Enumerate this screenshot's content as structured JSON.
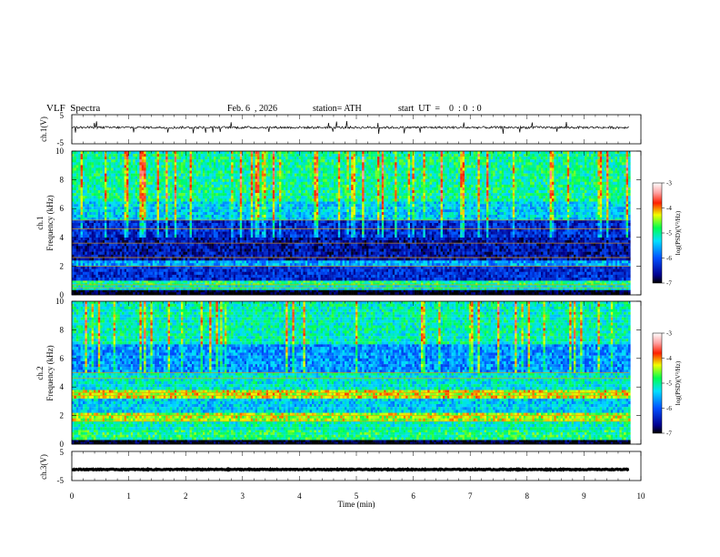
{
  "header": {
    "title": "VLF  Spectra",
    "date": "Feb. 6  , 2026",
    "station": "station= ATH",
    "start_ut": "start  UT  =    0  : 0  : 0"
  },
  "chart_data": [
    {
      "type": "line",
      "panel": "ch1-waveform",
      "ylabel": "ch.1(V)",
      "ylim": [
        -5,
        5
      ],
      "yticks": [
        "5",
        "-5"
      ],
      "xlim": [
        0,
        10
      ],
      "x_extent_min": 9.8,
      "baseline_v": 0.6,
      "noise_amplitude_v": 0.8,
      "spike_amplitude_v": 1.8
    },
    {
      "type": "heatmap",
      "panel": "ch1-spectrogram",
      "ylabel": "ch.1\nFrequency  (kHz)",
      "ylim": [
        0,
        10
      ],
      "yticks": [
        "0",
        "2",
        "4",
        "6",
        "8",
        "10"
      ],
      "xlim": [
        0,
        10
      ],
      "x_extent_min": 9.8,
      "colorbar": {
        "label": "log(PSD)(V²/Hz)",
        "range": [
          -7,
          -3
        ],
        "ticks": [
          "-3",
          "-4",
          "-5",
          "-6",
          "-7"
        ]
      },
      "bands": [
        {
          "f0": 0.0,
          "f1": 0.35,
          "level": -7.0
        },
        {
          "f0": 0.35,
          "f1": 0.7,
          "level": -5.2
        },
        {
          "f0": 0.7,
          "f1": 1.0,
          "level": -4.9
        },
        {
          "f0": 1.0,
          "f1": 2.0,
          "level": -6.3
        },
        {
          "f0": 2.0,
          "f1": 2.4,
          "level": -5.6
        },
        {
          "f0": 2.4,
          "f1": 4.0,
          "level": -6.5
        },
        {
          "f0": 4.0,
          "f1": 5.2,
          "level": -6.3
        },
        {
          "f0": 5.2,
          "f1": 6.5,
          "level": -5.4
        },
        {
          "f0": 6.5,
          "f1": 10.0,
          "level": -5.0
        }
      ],
      "lines_khz": [
        0.5,
        0.7,
        2.0,
        2.6,
        3.6,
        4.6,
        5.2
      ]
    },
    {
      "type": "heatmap",
      "panel": "ch2-spectrogram",
      "ylabel": "ch.2\nFrequency  (kHz)",
      "ylim": [
        0,
        10
      ],
      "yticks": [
        "0",
        "2",
        "4",
        "6",
        "8",
        "10"
      ],
      "xlim": [
        0,
        10
      ],
      "x_extent_min": 9.8,
      "colorbar": {
        "label": "log(PSD)(V²/Hz)",
        "range": [
          -7,
          -3
        ],
        "ticks": [
          "-3",
          "-4",
          "-5",
          "-6",
          "-7"
        ]
      },
      "bands": [
        {
          "f0": 0.0,
          "f1": 0.3,
          "level": -7.0
        },
        {
          "f0": 0.3,
          "f1": 1.0,
          "level": -4.9
        },
        {
          "f0": 1.0,
          "f1": 1.6,
          "level": -5.1
        },
        {
          "f0": 1.6,
          "f1": 2.2,
          "level": -4.4
        },
        {
          "f0": 2.2,
          "f1": 3.2,
          "level": -5.4
        },
        {
          "f0": 3.2,
          "f1": 3.8,
          "level": -4.3
        },
        {
          "f0": 3.8,
          "f1": 5.0,
          "level": -5.2
        },
        {
          "f0": 5.0,
          "f1": 7.0,
          "level": -5.7
        },
        {
          "f0": 7.0,
          "f1": 10.0,
          "level": -5.1
        }
      ],
      "lines_khz": [
        1.6,
        2.0,
        3.4,
        3.6,
        4.6,
        5.0
      ]
    },
    {
      "type": "line",
      "panel": "ch3-waveform",
      "ylabel": "ch.3(V)",
      "ylim": [
        -5,
        5
      ],
      "yticks": [
        "5",
        "-5"
      ],
      "xlim": [
        0,
        10
      ],
      "x_extent_min": 9.8,
      "baseline_v": -1.2,
      "noise_amplitude_v": 0.3,
      "spike_amplitude_v": 0
    }
  ],
  "xaxis": {
    "label": "Time  (min)",
    "ticks": [
      "0",
      "1",
      "2",
      "3",
      "4",
      "5",
      "6",
      "7",
      "8",
      "9",
      "10"
    ]
  }
}
